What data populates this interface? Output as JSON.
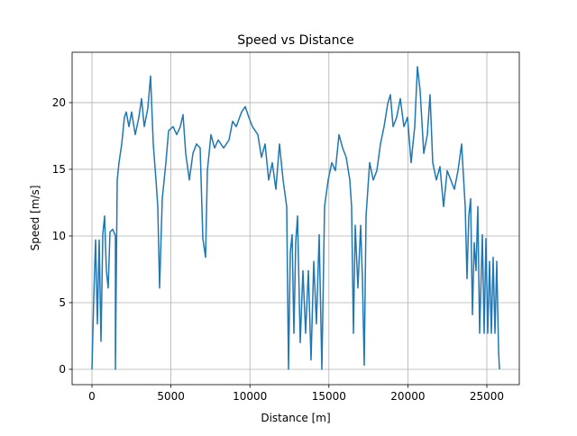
{
  "chart_data": {
    "type": "line",
    "title": "Speed vs Distance",
    "x_label": "Distance [m]",
    "y_label": "Speed [m/s]",
    "x": [
      0,
      114,
      228,
      342,
      457,
      571,
      685,
      799,
      913,
      1027,
      1142,
      1313,
      1484,
      1484,
      1598,
      1712,
      1884,
      2055,
      2169,
      2340,
      2511,
      2740,
      2968,
      3139,
      3311,
      3539,
      3710,
      3881,
      4053,
      4167,
      4281,
      4452,
      4680,
      4852,
      5137,
      5365,
      5594,
      5765,
      5936,
      6164,
      6393,
      6621,
      6849,
      7021,
      7192,
      7306,
      7534,
      7763,
      7991,
      8333,
      8676,
      8904,
      9132,
      9475,
      9703,
      9932,
      10160,
      10502,
      10731,
      10959,
      11187,
      11416,
      11644,
      11872,
      12100,
      12329,
      12443,
      12557,
      12671,
      12785,
      12900,
      13014,
      13185,
      13356,
      13527,
      13699,
      13870,
      14041,
      14212,
      14384,
      14555,
      14726,
      14954,
      15183,
      15411,
      15639,
      15868,
      16096,
      16324,
      16438,
      16553,
      16667,
      16838,
      17009,
      17123,
      17237,
      17352,
      17580,
      17808,
      18037,
      18265,
      18493,
      18721,
      18893,
      19064,
      19292,
      19521,
      19749,
      19977,
      20205,
      20434,
      20605,
      20776,
      21005,
      21233,
      21404,
      21575,
      21804,
      22032,
      22260,
      22489,
      22717,
      22945,
      23174,
      23402,
      23630,
      23744,
      23858,
      23973,
      24087,
      24201,
      24315,
      24429,
      24543,
      24715,
      24829,
      24943,
      25057,
      25171,
      25285,
      25400,
      25514,
      25628,
      25742,
      25799
    ],
    "series": [
      {
        "name": "Speed",
        "color": "#1f77b4",
        "values": [
          0,
          5.4,
          9.7,
          3.4,
          9.7,
          2.1,
          10.1,
          11.5,
          7.4,
          6.1,
          10.3,
          10.5,
          10,
          0,
          14.2,
          15.5,
          16.9,
          18.9,
          19.3,
          18.2,
          19.3,
          17.6,
          18.9,
          20.3,
          18.2,
          19.6,
          22,
          16.9,
          14.2,
          12.2,
          6.1,
          12.8,
          15.5,
          17.9,
          18.2,
          17.6,
          18.2,
          19.1,
          16.2,
          14.2,
          16.2,
          16.9,
          16.6,
          9.8,
          8.4,
          14.9,
          17.6,
          16.6,
          17.2,
          16.6,
          17.2,
          18.6,
          18.2,
          19.3,
          19.7,
          18.9,
          18.2,
          17.6,
          15.9,
          16.9,
          14.2,
          15.5,
          13.5,
          16.9,
          14.2,
          12.2,
          0,
          8.8,
          10.1,
          2.7,
          9.5,
          11.5,
          2,
          7.4,
          2.7,
          7.4,
          0.7,
          8.1,
          3.4,
          10.1,
          0,
          12.2,
          14.2,
          15.5,
          14.9,
          17.6,
          16.6,
          15.9,
          14.2,
          12.2,
          2.7,
          10.8,
          6.1,
          10.8,
          6.8,
          0.3,
          11.5,
          15.5,
          14.2,
          14.9,
          16.9,
          18.2,
          19.9,
          20.6,
          18.2,
          18.9,
          20.3,
          18.2,
          18.9,
          15.5,
          18.2,
          22.7,
          20.9,
          16.2,
          17.6,
          20.6,
          15.5,
          14.2,
          15.2,
          12.2,
          14.9,
          14.2,
          13.5,
          14.9,
          16.9,
          12.2,
          6.8,
          11.5,
          12.8,
          4.1,
          9.5,
          7.4,
          12.2,
          2.7,
          10.1,
          2.7,
          9.8,
          2.7,
          8.1,
          2.7,
          8.4,
          2.7,
          8.1,
          1.4,
          0
        ]
      }
    ],
    "xlim": [
      -1256,
      27055
    ],
    "ylim": [
      -1.15,
      23.78
    ],
    "xticks": [
      0,
      5000,
      10000,
      15000,
      20000,
      25000
    ],
    "yticks": [
      0,
      5,
      10,
      15,
      20
    ],
    "grid": true
  }
}
